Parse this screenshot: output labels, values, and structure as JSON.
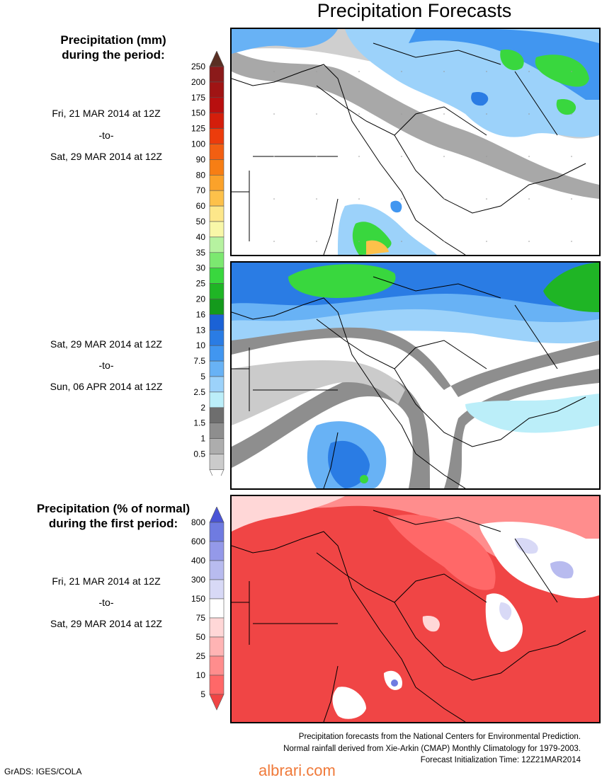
{
  "title": "Precipitation Forecasts",
  "section1": {
    "heading_line1": "Precipitation (mm)",
    "heading_line2": "during the period:"
  },
  "period1": {
    "from": "Fri, 21 MAR 2014 at 12Z",
    "sep": "-to-",
    "to": "Sat, 29 MAR 2014 at 12Z"
  },
  "period2": {
    "from": "Sat, 29 MAR 2014 at 12Z",
    "sep": "-to-",
    "to": "Sun, 06 APR 2014 at 12Z"
  },
  "section2": {
    "heading_line1": "Precipitation (% of normal)",
    "heading_line2": "during the first period:"
  },
  "period3": {
    "from": "Fri, 21 MAR 2014 at 12Z",
    "sep": "-to-",
    "to": "Sat, 29 MAR 2014 at 12Z"
  },
  "chart_data": [
    {
      "type": "heatmap",
      "colorbar": {
        "labels": [
          "250",
          "200",
          "175",
          "150",
          "125",
          "100",
          "90",
          "80",
          "70",
          "60",
          "50",
          "40",
          "35",
          "30",
          "25",
          "20",
          "16",
          "13",
          "10",
          "7.5",
          "5",
          "2.5",
          "2",
          "1.5",
          "1",
          "0.5"
        ],
        "colors": [
          "#5a2f23",
          "#8b1a1a",
          "#a01414",
          "#b80f0f",
          "#d41e0b",
          "#ec3c0c",
          "#f25f12",
          "#f77e14",
          "#fba22a",
          "#fdc14a",
          "#fde78a",
          "#f8f7a8",
          "#b6f2a0",
          "#7ce870",
          "#39d73e",
          "#1fb525",
          "#149a1c",
          "#1b62d6",
          "#2a7ce4",
          "#4196f0",
          "#68b2f5",
          "#9cd2fa",
          "#bbeef9",
          "#6e6e6e",
          "#8e8e8e",
          "#adadad",
          "#cbcbcb",
          "#ffffff"
        ]
      }
    },
    {
      "type": "heatmap",
      "colorbar": {
        "labels": [
          "800",
          "600",
          "400",
          "300",
          "150",
          "75",
          "50",
          "25",
          "10",
          "5"
        ],
        "colors": [
          "#4a54d6",
          "#6f7be1",
          "#9499e9",
          "#b8bbef",
          "#d8d9f6",
          "#ffffff",
          "#ffd7d7",
          "#ffb4b4",
          "#ff8d8d",
          "#ff6868",
          "#f04545"
        ]
      }
    }
  ],
  "footer": {
    "line1": "Precipitation forecasts from the National Centers for Environmental Prediction.",
    "line2": "Normal rainfall derived from Xie-Arkin (CMAP) Monthly Climatology for 1979-2003.",
    "line3": "Forecast Initialization Time: 12Z21MAR2014"
  },
  "credit": "GrADS: IGES/COLA",
  "watermark": "albrari.com"
}
